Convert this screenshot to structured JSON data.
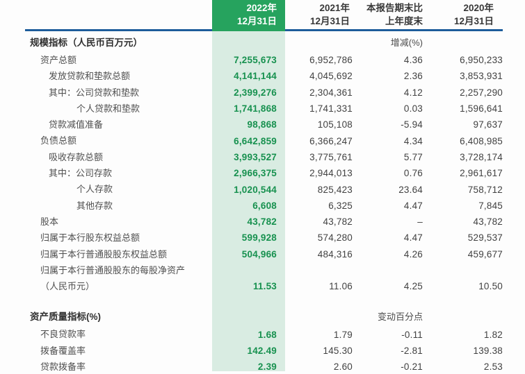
{
  "colors": {
    "header_green": "#26a35e",
    "light_green": "#d9ece2",
    "value_green": "#17914f",
    "rule_blue": "#1d5c9b"
  },
  "table": {
    "header": {
      "col2022": {
        "line1": "2022年",
        "line2": "12月31日"
      },
      "col2021": {
        "line1": "2021年",
        "line2": "12月31日"
      },
      "colchange": {
        "line1": "本报告期末比",
        "line2": "上年度末"
      },
      "col2020": {
        "line1": "2020年",
        "line2": "12月31日"
      }
    },
    "sections": [
      {
        "title": "规模指标（人民币百万元）",
        "change_label": "增减(%)",
        "rows": [
          {
            "label": "资产总额",
            "indent": 1,
            "v2022": "7,255,673",
            "v2021": "6,952,786",
            "change": "4.36",
            "v2020": "6,950,233"
          },
          {
            "label": "发放贷款和垫款总额",
            "indent": 2,
            "v2022": "4,141,144",
            "v2021": "4,045,692",
            "change": "2.36",
            "v2020": "3,853,931"
          },
          {
            "label": "其中：公司贷款和垫款",
            "indent": 2,
            "v2022": "2,399,276",
            "v2021": "2,304,361",
            "change": "4.12",
            "v2020": "2,257,290"
          },
          {
            "label": "个人贷款和垫款",
            "indent": 3,
            "v2022": "1,741,868",
            "v2021": "1,741,331",
            "change": "0.03",
            "v2020": "1,596,641"
          },
          {
            "label": "贷款减值准备",
            "indent": 2,
            "v2022": "98,868",
            "v2021": "105,108",
            "change": "-5.94",
            "v2020": "97,637"
          },
          {
            "label": "负债总额",
            "indent": 1,
            "v2022": "6,642,859",
            "v2021": "6,366,247",
            "change": "4.34",
            "v2020": "6,408,985"
          },
          {
            "label": "吸收存款总额",
            "indent": 2,
            "v2022": "3,993,527",
            "v2021": "3,775,761",
            "change": "5.77",
            "v2020": "3,728,174"
          },
          {
            "label": "其中：公司存款",
            "indent": 2,
            "v2022": "2,966,375",
            "v2021": "2,944,013",
            "change": "0.76",
            "v2020": "2,961,617"
          },
          {
            "label": "个人存款",
            "indent": 3,
            "v2022": "1,020,544",
            "v2021": "825,423",
            "change": "23.64",
            "v2020": "758,712"
          },
          {
            "label": "其他存款",
            "indent": 3,
            "v2022": "6,608",
            "v2021": "6,325",
            "change": "4.47",
            "v2020": "7,845"
          },
          {
            "label": "股本",
            "indent": 1,
            "v2022": "43,782",
            "v2021": "43,782",
            "change": "–",
            "v2020": "43,782"
          },
          {
            "label": "归属于本行股东权益总额",
            "indent": 1,
            "v2022": "599,928",
            "v2021": "574,280",
            "change": "4.47",
            "v2020": "529,537"
          },
          {
            "label": "归属于本行普通股股东权益总额",
            "indent": 1,
            "v2022": "504,966",
            "v2021": "484,316",
            "change": "4.26",
            "v2020": "459,677"
          },
          {
            "label": "归属于本行普通股股东的每股净资产\n（人民币元）",
            "indent": 1,
            "tall": true,
            "v2022": "11.53",
            "v2021": "11.06",
            "change": "4.25",
            "v2020": "10.50"
          }
        ]
      },
      {
        "title": "资产质量指标(%)",
        "change_label": "变动百分点",
        "rows": [
          {
            "label": "不良贷款率",
            "indent": 1,
            "v2022": "1.68",
            "v2021": "1.79",
            "change": "-0.11",
            "v2020": "1.82"
          },
          {
            "label": "拨备覆盖率",
            "indent": 1,
            "v2022": "142.49",
            "v2021": "145.30",
            "change": "-2.81",
            "v2020": "139.38"
          },
          {
            "label": "贷款拨备率",
            "indent": 1,
            "v2022": "2.39",
            "v2021": "2.60",
            "change": "-0.21",
            "v2020": "2.53"
          }
        ]
      }
    ]
  }
}
